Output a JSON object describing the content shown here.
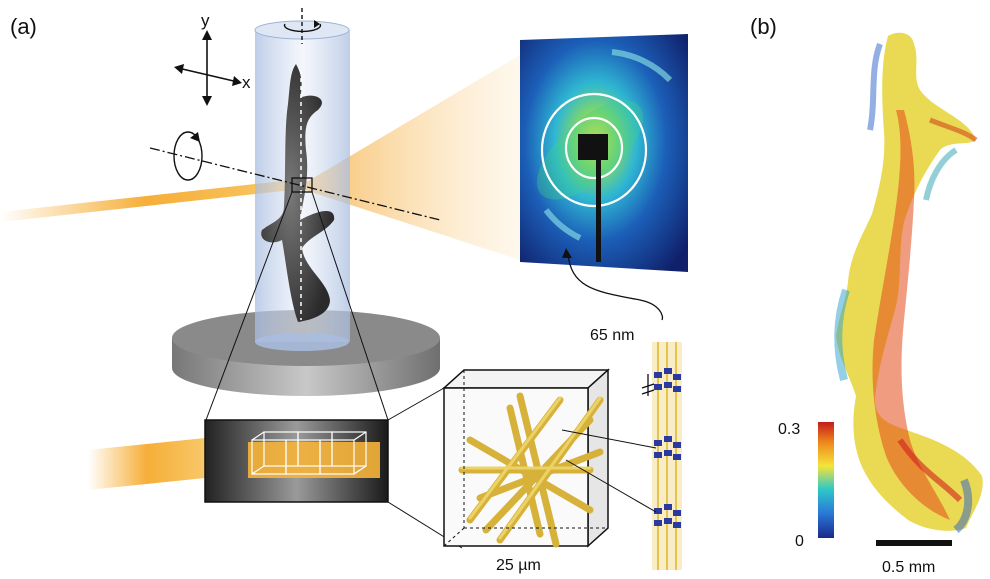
{
  "panels": {
    "a": {
      "label": "(a)"
    },
    "b": {
      "label": "(b)"
    }
  },
  "axes": {
    "y": "y",
    "x": "x"
  },
  "annotations": {
    "periodicity": "65 nm",
    "voxel_size": "25 µm"
  },
  "colorbar": {
    "max": "0.3",
    "min": "0",
    "colors": [
      "#1a2a8c",
      "#2a7bd8",
      "#2ec8c8",
      "#f4e43a",
      "#f08a1c",
      "#c41c1c"
    ]
  },
  "scalebar": {
    "label": "0.5 mm"
  },
  "colors": {
    "beam": "#f5a623",
    "cylinder": "#b9c9e6",
    "stage": "#8c8c8c",
    "fibril": "#e6c44a"
  }
}
